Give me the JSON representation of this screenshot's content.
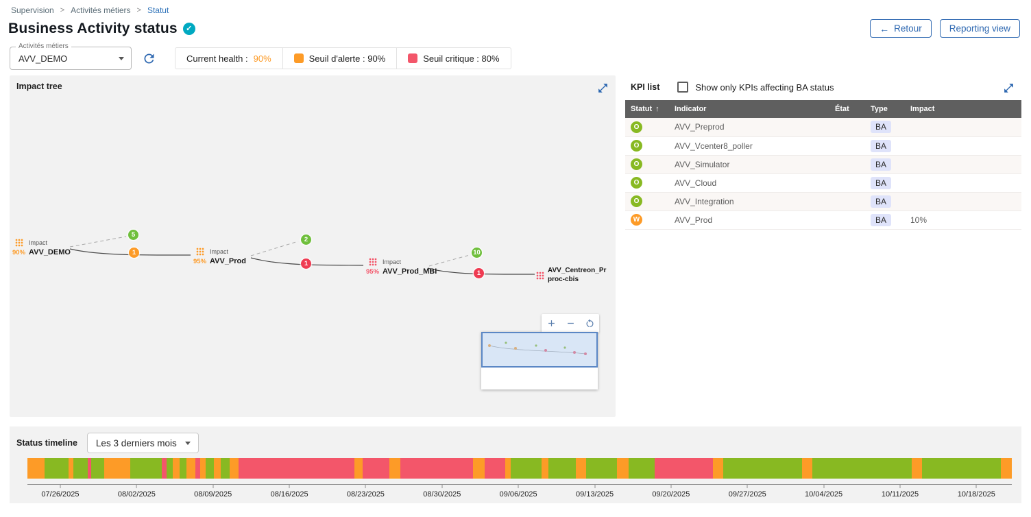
{
  "colors": {
    "ok": "#88B922",
    "warning": "#FD9B27",
    "critical": "#F3566A",
    "accent_blue": "#2E68B1",
    "teal": "#00A9C1",
    "table_header": "#5F5F5F"
  },
  "breadcrumb": {
    "items": [
      "Supervision",
      "Activités métiers",
      "Statut"
    ]
  },
  "header": {
    "title": "Business Activity status",
    "back_label": "Retour",
    "reporting_label": "Reporting view"
  },
  "filters": {
    "ba_select_label": "Activités métiers",
    "ba_select_value": "AVV_DEMO",
    "current_health_label": "Current health :",
    "current_health_value": "90%",
    "warning_legend": "Seuil d'alerte : 90%",
    "critical_legend": "Seuil critique : 80%"
  },
  "impact_tree": {
    "title": "Impact tree",
    "nodes": [
      {
        "impact_label": "Impact",
        "value": "90%",
        "name": "AVV_DEMO",
        "status": "warning"
      },
      {
        "impact_label": "Impact",
        "value": "95%",
        "name": "AVV_Prod",
        "status": "warning"
      },
      {
        "impact_label": "Impact",
        "value": "95%",
        "name": "AVV_Prod_MBI",
        "status": "critical"
      },
      {
        "name_line1": "AVV_Centreon_Pr",
        "name_line2": "proc-cbis",
        "status": "critical"
      }
    ],
    "edge_badges": [
      {
        "value": "5",
        "status": "ok"
      },
      {
        "value": "1",
        "status": "warning"
      },
      {
        "value": "2",
        "status": "ok"
      },
      {
        "value": "1",
        "status": "critical"
      },
      {
        "value": "10",
        "status": "ok"
      },
      {
        "value": "1",
        "status": "critical"
      }
    ]
  },
  "kpi_list": {
    "title": "KPI list",
    "filter_checkbox_label": "Show only KPIs affecting BA status",
    "columns": [
      "Statut",
      "Indicator",
      "État",
      "Type",
      "Impact"
    ],
    "rows": [
      {
        "status": "O",
        "status_kind": "ok",
        "indicator": "AVV_Preprod",
        "etat": "",
        "type": "BA",
        "impact": ""
      },
      {
        "status": "O",
        "status_kind": "ok",
        "indicator": "AVV_Vcenter8_poller",
        "etat": "",
        "type": "BA",
        "impact": ""
      },
      {
        "status": "O",
        "status_kind": "ok",
        "indicator": "AVV_Simulator",
        "etat": "",
        "type": "BA",
        "impact": ""
      },
      {
        "status": "O",
        "status_kind": "ok",
        "indicator": "AVV_Cloud",
        "etat": "",
        "type": "BA",
        "impact": ""
      },
      {
        "status": "O",
        "status_kind": "ok",
        "indicator": "AVV_Integration",
        "etat": "",
        "type": "BA",
        "impact": ""
      },
      {
        "status": "W",
        "status_kind": "warning",
        "indicator": "AVV_Prod",
        "etat": "",
        "type": "BA",
        "impact": "10%"
      }
    ]
  },
  "timeline": {
    "title": "Status timeline",
    "period_value": "Les 3 derniers mois"
  },
  "chart_data": {
    "type": "status-timeline",
    "title": "Status timeline",
    "period": "Les 3 derniers mois",
    "statuses": {
      "ok": "#88B922",
      "warning": "#FD9B27",
      "critical": "#F3566A"
    },
    "x_tick_labels": [
      "07/26/2025",
      "08/02/2025",
      "08/09/2025",
      "08/16/2025",
      "08/23/2025",
      "08/30/2025",
      "09/06/2025",
      "09/13/2025",
      "09/20/2025",
      "09/27/2025",
      "10/04/2025",
      "10/11/2025",
      "10/18/2025"
    ],
    "x_tick_positions_pct": [
      3.34,
      11.1,
      18.85,
      26.61,
      34.36,
      42.12,
      49.87,
      57.63,
      65.38,
      73.14,
      80.89,
      88.65,
      96.4
    ],
    "segments": [
      {
        "w": 1.74,
        "s": "warning"
      },
      {
        "w": 2.44,
        "s": "ok"
      },
      {
        "w": 0.49,
        "s": "warning"
      },
      {
        "w": 1.46,
        "s": "ok"
      },
      {
        "w": 0.35,
        "s": "critical"
      },
      {
        "w": 1.32,
        "s": "ok"
      },
      {
        "w": 2.65,
        "s": "warning"
      },
      {
        "w": 3.2,
        "s": "ok"
      },
      {
        "w": 0.49,
        "s": "critical"
      },
      {
        "w": 0.62,
        "s": "ok"
      },
      {
        "w": 0.7,
        "s": "warning"
      },
      {
        "w": 0.7,
        "s": "ok"
      },
      {
        "w": 0.9,
        "s": "warning"
      },
      {
        "w": 0.49,
        "s": "critical"
      },
      {
        "w": 0.56,
        "s": "warning"
      },
      {
        "w": 0.83,
        "s": "ok"
      },
      {
        "w": 0.7,
        "s": "warning"
      },
      {
        "w": 0.9,
        "s": "ok"
      },
      {
        "w": 0.91,
        "s": "warning"
      },
      {
        "w": 11.77,
        "s": "critical"
      },
      {
        "w": 0.83,
        "s": "warning"
      },
      {
        "w": 2.72,
        "s": "critical"
      },
      {
        "w": 1.11,
        "s": "warning"
      },
      {
        "w": 7.38,
        "s": "critical"
      },
      {
        "w": 1.19,
        "s": "warning"
      },
      {
        "w": 2.09,
        "s": "critical"
      },
      {
        "w": 0.55,
        "s": "warning"
      },
      {
        "w": 3.14,
        "s": "ok"
      },
      {
        "w": 0.69,
        "s": "warning"
      },
      {
        "w": 2.79,
        "s": "ok"
      },
      {
        "w": 1.04,
        "s": "warning"
      },
      {
        "w": 3.14,
        "s": "ok"
      },
      {
        "w": 1.18,
        "s": "warning"
      },
      {
        "w": 2.65,
        "s": "ok"
      },
      {
        "w": 5.92,
        "s": "critical"
      },
      {
        "w": 1.04,
        "s": "warning"
      },
      {
        "w": 8.01,
        "s": "ok"
      },
      {
        "w": 1.05,
        "s": "warning"
      },
      {
        "w": 10.09,
        "s": "ok"
      },
      {
        "w": 1.05,
        "s": "warning"
      },
      {
        "w": 8.01,
        "s": "ok"
      },
      {
        "w": 1.11,
        "s": "warning"
      }
    ]
  }
}
